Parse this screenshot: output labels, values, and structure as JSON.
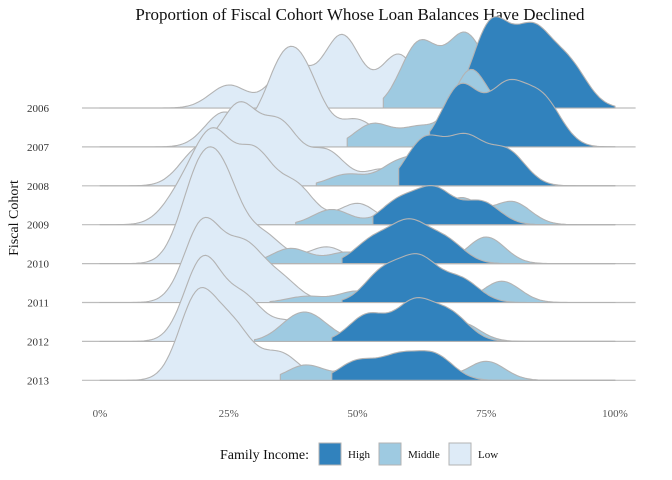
{
  "chart_data": {
    "type": "ridgeline",
    "title": "Proportion of Fiscal Cohort Whose Loan Balances Have Declined",
    "xlabel": "",
    "ylabel": "Fiscal Cohort",
    "x_unit": "percent",
    "xlim": [
      0,
      100
    ],
    "x_ticks": [
      "0%",
      "25%",
      "50%",
      "75%",
      "100%"
    ],
    "x_tick_values": [
      0,
      25,
      50,
      75,
      100
    ],
    "categories": [
      "2006",
      "2007",
      "2008",
      "2009",
      "2010",
      "2011",
      "2012",
      "2013"
    ],
    "grid": false,
    "legend": {
      "title": "Family Income:",
      "position": "bottom",
      "items": [
        {
          "label": "High",
          "color": "#3182bd"
        },
        {
          "label": "Middle",
          "color": "#9ecae1"
        },
        {
          "label": "Low",
          "color": "#deebf7"
        }
      ]
    },
    "series": [
      {
        "name": "Low",
        "color": "#deebf7",
        "ridges": [
          {
            "cohort": "2006",
            "range": [
              0,
              100
            ],
            "peaks": [
              {
                "x": 25,
                "h": 0.3
              },
              {
                "x": 37,
                "h": 0.6
              },
              {
                "x": 47,
                "h": 0.95
              },
              {
                "x": 58,
                "h": 0.7
              },
              {
                "x": 70,
                "h": 0.35
              }
            ]
          },
          {
            "cohort": "2007",
            "range": [
              0,
              100
            ],
            "peaks": [
              {
                "x": 24,
                "h": 0.45
              },
              {
                "x": 35,
                "h": 0.9
              },
              {
                "x": 40,
                "h": 0.78
              },
              {
                "x": 50,
                "h": 0.35
              },
              {
                "x": 62,
                "h": 0.25
              }
            ]
          },
          {
            "cohort": "2008",
            "range": [
              0,
              100
            ],
            "peaks": [
              {
                "x": 19,
                "h": 0.45
              },
              {
                "x": 27,
                "h": 1.0
              },
              {
                "x": 35,
                "h": 0.78
              },
              {
                "x": 44,
                "h": 0.45
              },
              {
                "x": 55,
                "h": 0.22
              }
            ]
          },
          {
            "cohort": "2009",
            "range": [
              0,
              100
            ],
            "peaks": [
              {
                "x": 16,
                "h": 0.4
              },
              {
                "x": 22,
                "h": 1.1
              },
              {
                "x": 30,
                "h": 0.9
              },
              {
                "x": 38,
                "h": 0.5
              },
              {
                "x": 50,
                "h": 0.28
              }
            ]
          },
          {
            "cohort": "2010",
            "range": [
              0,
              100
            ],
            "peaks": [
              {
                "x": 19,
                "h": 1.0
              },
              {
                "x": 24,
                "h": 0.95
              },
              {
                "x": 32,
                "h": 0.35
              },
              {
                "x": 44,
                "h": 0.22
              },
              {
                "x": 60,
                "h": 0.15
              }
            ]
          },
          {
            "cohort": "2011",
            "range": [
              0,
              100
            ],
            "peaks": [
              {
                "x": 20,
                "h": 1.05
              },
              {
                "x": 28,
                "h": 0.7
              },
              {
                "x": 35,
                "h": 0.3
              },
              {
                "x": 50,
                "h": 0.15
              }
            ]
          },
          {
            "cohort": "2012",
            "range": [
              0,
              100
            ],
            "peaks": [
              {
                "x": 20,
                "h": 1.08
              },
              {
                "x": 28,
                "h": 0.55
              },
              {
                "x": 37,
                "h": 0.25
              },
              {
                "x": 52,
                "h": 0.12
              }
            ]
          },
          {
            "cohort": "2013",
            "range": [
              0,
              100
            ],
            "peaks": [
              {
                "x": 19,
                "h": 1.1
              },
              {
                "x": 26,
                "h": 0.65
              },
              {
                "x": 35,
                "h": 0.35
              },
              {
                "x": 48,
                "h": 0.15
              }
            ]
          }
        ]
      },
      {
        "name": "Middle",
        "color": "#9ecae1",
        "ridges": [
          {
            "cohort": "2006",
            "range": [
              55,
              100
            ],
            "peaks": [
              {
                "x": 62,
                "h": 0.85
              },
              {
                "x": 71,
                "h": 0.95
              },
              {
                "x": 82,
                "h": 1.05
              },
              {
                "x": 90,
                "h": 0.35
              }
            ]
          },
          {
            "cohort": "2007",
            "range": [
              48,
              100
            ],
            "peaks": [
              {
                "x": 53,
                "h": 0.3
              },
              {
                "x": 62,
                "h": 0.25
              },
              {
                "x": 72,
                "h": 1.0
              },
              {
                "x": 82,
                "h": 0.7
              }
            ]
          },
          {
            "cohort": "2008",
            "range": [
              42,
              100
            ],
            "peaks": [
              {
                "x": 48,
                "h": 0.15
              },
              {
                "x": 58,
                "h": 0.3
              },
              {
                "x": 66,
                "h": 0.55
              },
              {
                "x": 77,
                "h": 0.5
              }
            ]
          },
          {
            "cohort": "2009",
            "range": [
              38,
              100
            ],
            "peaks": [
              {
                "x": 45,
                "h": 0.2
              },
              {
                "x": 58,
                "h": 0.25
              },
              {
                "x": 70,
                "h": 0.35
              },
              {
                "x": 80,
                "h": 0.3
              }
            ]
          },
          {
            "cohort": "2010",
            "range": [
              30,
              100
            ],
            "peaks": [
              {
                "x": 37,
                "h": 0.2
              },
              {
                "x": 48,
                "h": 0.15
              },
              {
                "x": 60,
                "h": 0.3
              },
              {
                "x": 75,
                "h": 0.35
              }
            ]
          },
          {
            "cohort": "2011",
            "range": [
              33,
              100
            ],
            "peaks": [
              {
                "x": 40,
                "h": 0.08
              },
              {
                "x": 50,
                "h": 0.15
              },
              {
                "x": 62,
                "h": 0.3
              },
              {
                "x": 78,
                "h": 0.28
              }
            ]
          },
          {
            "cohort": "2012",
            "range": [
              30,
              100
            ],
            "peaks": [
              {
                "x": 38,
                "h": 0.25
              },
              {
                "x": 42,
                "h": 0.2
              },
              {
                "x": 55,
                "h": 0.15
              },
              {
                "x": 70,
                "h": 0.25
              }
            ]
          },
          {
            "cohort": "2013",
            "range": [
              35,
              100
            ],
            "peaks": [
              {
                "x": 40,
                "h": 0.2
              },
              {
                "x": 50,
                "h": 0.12
              },
              {
                "x": 62,
                "h": 0.25
              },
              {
                "x": 75,
                "h": 0.25
              }
            ]
          }
        ]
      },
      {
        "name": "High",
        "color": "#3182bd",
        "ridges": [
          {
            "cohort": "2006",
            "range": [
              68,
              100
            ],
            "peaks": [
              {
                "x": 76,
                "h": 1.1
              },
              {
                "x": 84,
                "h": 0.95
              },
              {
                "x": 91,
                "h": 0.55
              }
            ]
          },
          {
            "cohort": "2007",
            "range": [
              64,
              100
            ],
            "peaks": [
              {
                "x": 70,
                "h": 0.8
              },
              {
                "x": 79,
                "h": 0.75
              },
              {
                "x": 86,
                "h": 0.6
              }
            ]
          },
          {
            "cohort": "2008",
            "range": [
              58,
              100
            ],
            "peaks": [
              {
                "x": 63,
                "h": 0.6
              },
              {
                "x": 71,
                "h": 0.6
              },
              {
                "x": 79,
                "h": 0.45
              }
            ]
          },
          {
            "cohort": "2009",
            "range": [
              53,
              100
            ],
            "peaks": [
              {
                "x": 58,
                "h": 0.3
              },
              {
                "x": 65,
                "h": 0.45
              },
              {
                "x": 74,
                "h": 0.3
              }
            ]
          },
          {
            "cohort": "2010",
            "range": [
              47,
              100
            ],
            "peaks": [
              {
                "x": 53,
                "h": 0.3
              },
              {
                "x": 60,
                "h": 0.5
              },
              {
                "x": 67,
                "h": 0.3
              }
            ]
          },
          {
            "cohort": "2011",
            "range": [
              47,
              100
            ],
            "peaks": [
              {
                "x": 55,
                "h": 0.4
              },
              {
                "x": 62,
                "h": 0.55
              },
              {
                "x": 70,
                "h": 0.3
              }
            ]
          },
          {
            "cohort": "2012",
            "range": [
              45,
              100
            ],
            "peaks": [
              {
                "x": 52,
                "h": 0.35
              },
              {
                "x": 61,
                "h": 0.5
              },
              {
                "x": 68,
                "h": 0.35
              }
            ]
          },
          {
            "cohort": "2013",
            "range": [
              45,
              100
            ],
            "peaks": [
              {
                "x": 50,
                "h": 0.25
              },
              {
                "x": 58,
                "h": 0.3
              },
              {
                "x": 65,
                "h": 0.32
              }
            ]
          }
        ]
      }
    ]
  }
}
